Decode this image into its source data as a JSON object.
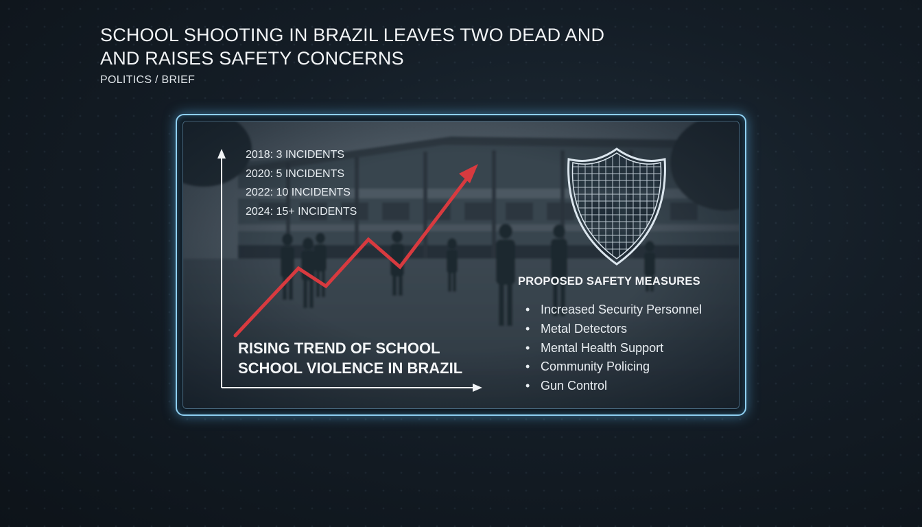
{
  "header": {
    "headline_line1": "SCHOOL SHOOTING IN BRAZIL LEAVES TWO DEAD AND",
    "headline_line2": "AND RAISES SAFETY CONCERNS",
    "category": "POLITICS / BRIEF"
  },
  "graphic": {
    "incidents": [
      "2018: 3 INCIDENTS",
      "2020: 5 INCIDENTS",
      "2022: 10 INCIDENTS",
      "2024: 15+ INCIDENTS"
    ],
    "trend_title_line1": "RISING TREND OF SCHOOL",
    "trend_title_line2": "SCHOOL VIOLENCE IN BRAZIL",
    "trend_color": "#d83a3f",
    "accent_color": "#8fd0f2",
    "shield_icon": "shield-grid-icon",
    "measures_title": "PROPOSED SAFETY MEASURES",
    "measures": [
      "Increased Security Personnel",
      "Metal Detectors",
      "Mental Health Support",
      "Community Policing",
      "Gun Control"
    ]
  }
}
